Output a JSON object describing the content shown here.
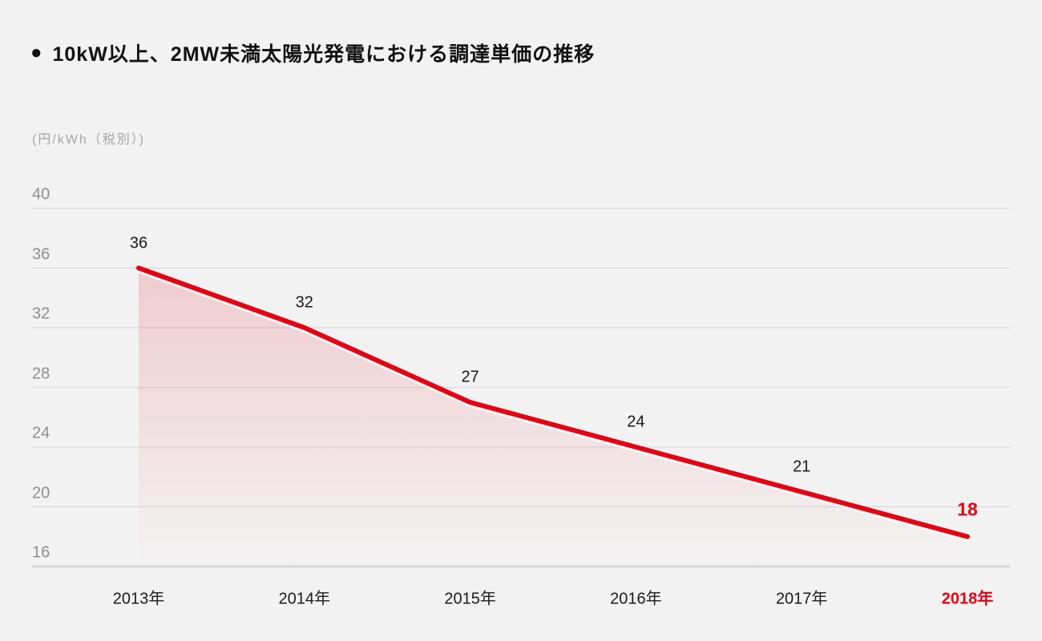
{
  "page": {
    "background_color": "#f2f2f2"
  },
  "title": {
    "bullet": "●",
    "text": "10kW以上、2MW未満太陽光発電における調達単価の推移"
  },
  "unit_label": "(円/kWh（税別）)",
  "chart_data": {
    "type": "area",
    "title": "10kW以上、2MW未満太陽光発電における調達単価の推移",
    "ylabel": "円/kWh（税別）",
    "categories": [
      "2013年",
      "2014年",
      "2015年",
      "2016年",
      "2017年",
      "2018年"
    ],
    "values": [
      36,
      32,
      27,
      24,
      21,
      18
    ],
    "data_labels": [
      "36",
      "32",
      "27",
      "24",
      "21",
      "18"
    ],
    "yticks": [
      40,
      36,
      32,
      28,
      24,
      20,
      16
    ],
    "ylim": [
      16,
      40
    ],
    "grid": true,
    "legend": "none",
    "line_color": "#e60012",
    "line_casing_color": "#ffffff",
    "area_color_top": "rgba(230,0,18,0.16)",
    "area_color_bottom": "rgba(230,0,18,0)",
    "grid_color": "#dedede",
    "baseline_color": "#d6d6d6",
    "tick_color": "#8f8f8f",
    "label_color": "#1a1a1a",
    "highlight_last": true,
    "highlight_color": "#e60012"
  }
}
